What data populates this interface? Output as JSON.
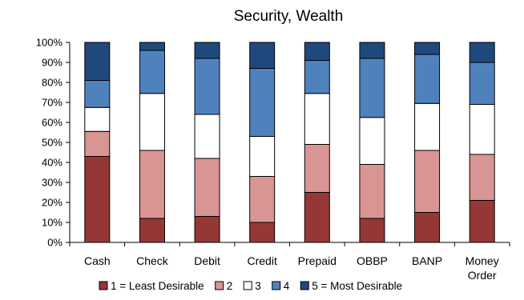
{
  "chart_data": {
    "type": "bar",
    "stacked": true,
    "normalized": true,
    "title": "Security, Wealth",
    "categories": [
      "Cash",
      "Check",
      "Debit",
      "Credit",
      "Prepaid",
      "OBBP",
      "BANP",
      "Money Order"
    ],
    "ylim": [
      0,
      100
    ],
    "yticks": [
      "0%",
      "10%",
      "20%",
      "30%",
      "40%",
      "50%",
      "60%",
      "70%",
      "80%",
      "90%",
      "100%"
    ],
    "grid": false,
    "legend_position": "bottom",
    "series": [
      {
        "name": "1 = Least Desirable",
        "color": "#953735",
        "values": [
          43,
          12,
          13,
          10,
          25,
          12,
          15,
          21
        ]
      },
      {
        "name": "2",
        "color": "#D99594",
        "values": [
          12.5,
          34,
          29,
          23,
          24,
          27,
          31,
          23
        ]
      },
      {
        "name": "3",
        "color": "#FFFFFF",
        "values": [
          12,
          28.5,
          22,
          20,
          25.5,
          23.5,
          23.5,
          25
        ]
      },
      {
        "name": "4",
        "color": "#4F81BD",
        "values": [
          13.5,
          21.5,
          28,
          34,
          16.5,
          29.5,
          24.5,
          21
        ]
      },
      {
        "name": "5 = Most Desirable",
        "color": "#1F497D",
        "values": [
          19,
          4,
          8,
          13,
          9,
          8,
          6,
          10
        ]
      }
    ]
  }
}
